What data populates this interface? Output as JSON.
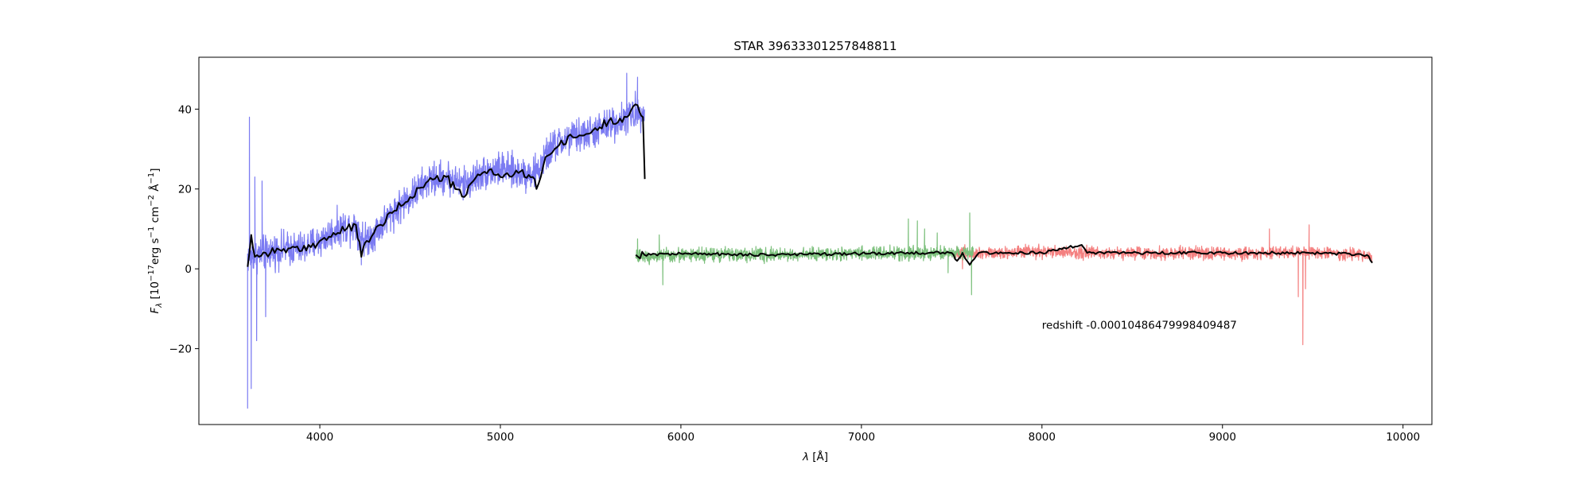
{
  "chart_data": {
    "type": "line",
    "title": "STAR 39633301257848811",
    "xlabel_base": "λ",
    "xlabel_unit": "[Å]",
    "ylabel_base": "F",
    "ylabel_sub": "λ",
    "ylabel_unit_parts": [
      {
        "t": "[10"
      },
      {
        "t": "−17",
        "sup": true
      },
      {
        "t": "erg s"
      },
      {
        "t": "−1",
        "sup": true
      },
      {
        "t": " cm"
      },
      {
        "t": "−2",
        "sup": true
      },
      {
        "t": " Å"
      },
      {
        "t": "−1",
        "sup": true
      },
      {
        "t": "]"
      }
    ],
    "xlim": [
      3330,
      10160
    ],
    "ylim": [
      -39,
      53
    ],
    "xticks": [
      4000,
      5000,
      6000,
      7000,
      8000,
      9000,
      10000
    ],
    "xtick_labels": [
      "4000",
      "5000",
      "6000",
      "7000",
      "8000",
      "9000",
      "10000"
    ],
    "yticks": [
      -20,
      0,
      20,
      40
    ],
    "ytick_labels": [
      "−20",
      "0",
      "20",
      "40"
    ],
    "grid": false,
    "annotation": {
      "text": "redshift -0.00010486479998409487",
      "x": 8000,
      "y": -14
    },
    "series": [
      {
        "id": "b",
        "color": "#7b7bf2",
        "x_range": [
          3600,
          5800
        ],
        "trend": [
          [
            3600,
            3
          ],
          [
            3700,
            4
          ],
          [
            3800,
            5
          ],
          [
            3900,
            5
          ],
          [
            4000,
            7
          ],
          [
            4100,
            10
          ],
          [
            4200,
            11
          ],
          [
            4250,
            7
          ],
          [
            4300,
            9
          ],
          [
            4400,
            14
          ],
          [
            4500,
            18
          ],
          [
            4600,
            22
          ],
          [
            4700,
            23
          ],
          [
            4800,
            21
          ],
          [
            4900,
            24
          ],
          [
            5000,
            25
          ],
          [
            5100,
            24
          ],
          [
            5200,
            24
          ],
          [
            5250,
            28
          ],
          [
            5300,
            31
          ],
          [
            5400,
            33
          ],
          [
            5500,
            34
          ],
          [
            5600,
            36
          ],
          [
            5700,
            38
          ],
          [
            5800,
            40
          ]
        ],
        "noise": 3.2,
        "extremes": [
          [
            3600,
            -35
          ],
          [
            3610,
            38
          ],
          [
            3620,
            -30
          ],
          [
            3640,
            23
          ],
          [
            3650,
            -18
          ],
          [
            3680,
            22
          ],
          [
            3700,
            -12
          ],
          [
            4230,
            1
          ],
          [
            5700,
            49
          ],
          [
            5760,
            48
          ]
        ]
      },
      {
        "id": "r",
        "color": "#f48080",
        "x_range": [
          7520,
          9830
        ],
        "trend": [
          [
            7520,
            4
          ],
          [
            8000,
            4.2
          ],
          [
            8500,
            4
          ],
          [
            9000,
            3.8
          ],
          [
            9500,
            4.2
          ],
          [
            9830,
            3.2
          ]
        ],
        "noise": 1.2,
        "extremes": [
          [
            9420,
            -7
          ],
          [
            9445,
            -19
          ],
          [
            9480,
            11
          ],
          [
            9260,
            10
          ],
          [
            9460,
            -5
          ],
          [
            7560,
            0
          ]
        ]
      },
      {
        "id": "z",
        "color": "#7cc07c",
        "x_range": [
          5750,
          7620
        ],
        "trend": [
          [
            5750,
            3
          ],
          [
            6000,
            3.5
          ],
          [
            6500,
            3.5
          ],
          [
            7000,
            3.8
          ],
          [
            7500,
            4
          ],
          [
            7620,
            4
          ]
        ],
        "noise": 1.3,
        "extremes": [
          [
            5760,
            7.5
          ],
          [
            5880,
            8.5
          ],
          [
            5900,
            -4
          ],
          [
            7260,
            12.5
          ],
          [
            7310,
            12
          ],
          [
            7350,
            10
          ],
          [
            7420,
            9
          ],
          [
            7600,
            14
          ],
          [
            7610,
            -6.5
          ],
          [
            7480,
            -1
          ]
        ]
      },
      {
        "id": "model",
        "color": "#000000",
        "x_range": [
          3600,
          9830
        ],
        "segments": [
          [
            [
              3600,
              0.5
            ],
            [
              3620,
              8.5
            ],
            [
              3640,
              3
            ],
            [
              3700,
              4
            ],
            [
              3800,
              5
            ],
            [
              3900,
              4.5
            ],
            [
              4000,
              7
            ],
            [
              4100,
              9
            ],
            [
              4200,
              11
            ],
            [
              4230,
              3
            ],
            [
              4260,
              7
            ],
            [
              4300,
              9
            ],
            [
              4400,
              14
            ],
            [
              4500,
              18
            ],
            [
              4600,
              22
            ],
            [
              4700,
              23
            ],
            [
              4750,
              20
            ],
            [
              4800,
              18
            ],
            [
              4850,
              22
            ],
            [
              4900,
              24
            ],
            [
              4950,
              25
            ],
            [
              5000,
              23
            ],
            [
              5100,
              24
            ],
            [
              5180,
              23
            ],
            [
              5200,
              20
            ],
            [
              5250,
              28
            ],
            [
              5300,
              30
            ],
            [
              5400,
              33
            ],
            [
              5500,
              34
            ],
            [
              5600,
              37
            ],
            [
              5700,
              38
            ],
            [
              5760,
              41
            ],
            [
              5790,
              38
            ],
            [
              5800,
              22.5
            ]
          ],
          [
            [
              5750,
              3.5
            ],
            [
              6000,
              3.8
            ],
            [
              6500,
              3.5
            ],
            [
              7000,
              3.8
            ],
            [
              7400,
              4
            ],
            [
              7500,
              4
            ],
            [
              7530,
              2
            ],
            [
              7560,
              4
            ],
            [
              7600,
              1
            ],
            [
              7650,
              4
            ],
            [
              8000,
              4
            ],
            [
              8220,
              6
            ],
            [
              8250,
              4
            ],
            [
              8500,
              4
            ],
            [
              9000,
              4
            ],
            [
              9500,
              4
            ],
            [
              9800,
              3.5
            ],
            [
              9830,
              1.5
            ]
          ]
        ]
      }
    ]
  }
}
